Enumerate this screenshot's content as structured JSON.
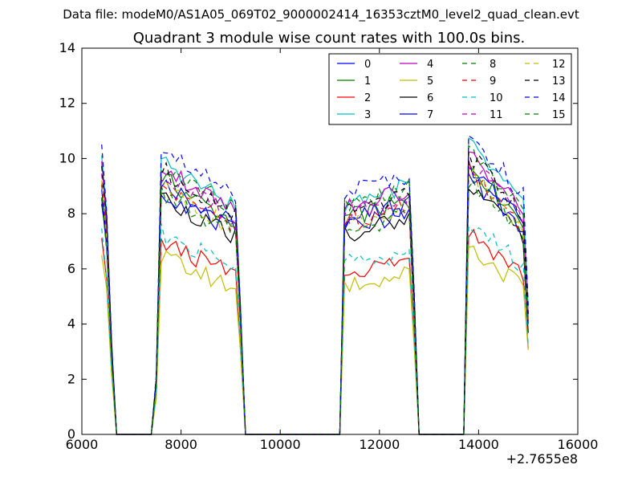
{
  "supertitle": "Data file: modeM0/AS1A05_069T02_9000002414_16353cztM0_level2_quad_clean.evt",
  "chart_data": {
    "type": "line",
    "title": "Quadrant 3 module wise count rates with 100.0s bins.",
    "xlabel": "",
    "ylabel": "",
    "x_offset_label": "+2.7655e8",
    "xlim": [
      6000,
      16000
    ],
    "ylim": [
      0,
      14
    ],
    "x_ticks": [
      6000,
      8000,
      10000,
      12000,
      14000,
      16000
    ],
    "y_ticks": [
      0,
      2,
      4,
      6,
      8,
      10,
      12,
      14
    ],
    "x_tick_labels": [
      "6000",
      "8000",
      "10000",
      "12000",
      "14000",
      "16000"
    ],
    "y_tick_labels": [
      "0",
      "2",
      "4",
      "6",
      "8",
      "10",
      "12",
      "14"
    ],
    "grid": false,
    "legend_position": "top-right",
    "legend_columns": 4,
    "series": [
      {
        "name": "0",
        "color": "#0000ff",
        "dash": "solid",
        "level": 8.3
      },
      {
        "name": "1",
        "color": "#008000",
        "dash": "solid",
        "level": 8.4
      },
      {
        "name": "2",
        "color": "#ff0000",
        "dash": "solid",
        "level": 6.3
      },
      {
        "name": "3",
        "color": "#00bfbf",
        "dash": "solid",
        "level": 9.0
      },
      {
        "name": "4",
        "color": "#bf00bf",
        "dash": "solid",
        "level": 8.8
      },
      {
        "name": "5",
        "color": "#bfbf00",
        "dash": "solid",
        "level": 5.8
      },
      {
        "name": "6",
        "color": "#000000",
        "dash": "solid",
        "level": 7.8
      },
      {
        "name": "7",
        "color": "#0000ff",
        "dash": "solid",
        "level": 8.0
      },
      {
        "name": "8",
        "color": "#008000",
        "dash": "dashed",
        "level": 8.9
      },
      {
        "name": "9",
        "color": "#ff0000",
        "dash": "dashed",
        "level": 8.2
      },
      {
        "name": "10",
        "color": "#00bfbf",
        "dash": "dashed",
        "level": 6.6
      },
      {
        "name": "11",
        "color": "#bf00bf",
        "dash": "dashed",
        "level": 8.5
      },
      {
        "name": "12",
        "color": "#bfbf00",
        "dash": "dashed",
        "level": 8.1
      },
      {
        "name": "13",
        "color": "#000000",
        "dash": "dashed",
        "level": 8.7
      },
      {
        "name": "14",
        "color": "#0000ff",
        "dash": "dashed",
        "level": 9.4
      },
      {
        "name": "15",
        "color": "#008000",
        "dash": "dashed",
        "level": 7.9
      }
    ],
    "segments": [
      {
        "start": 6400,
        "end": 6600,
        "entry_factor": 1.05,
        "decay": "falling"
      },
      {
        "start": 7500,
        "end": 9200,
        "entry_factor": 1.12,
        "decay": "declining"
      },
      {
        "start": 11250,
        "end": 12700,
        "entry_factor": 0.93,
        "decay": "rising"
      },
      {
        "start": 13750,
        "end": 15000,
        "entry_factor": 1.18,
        "decay": "declining"
      }
    ],
    "gap_value": 0
  }
}
